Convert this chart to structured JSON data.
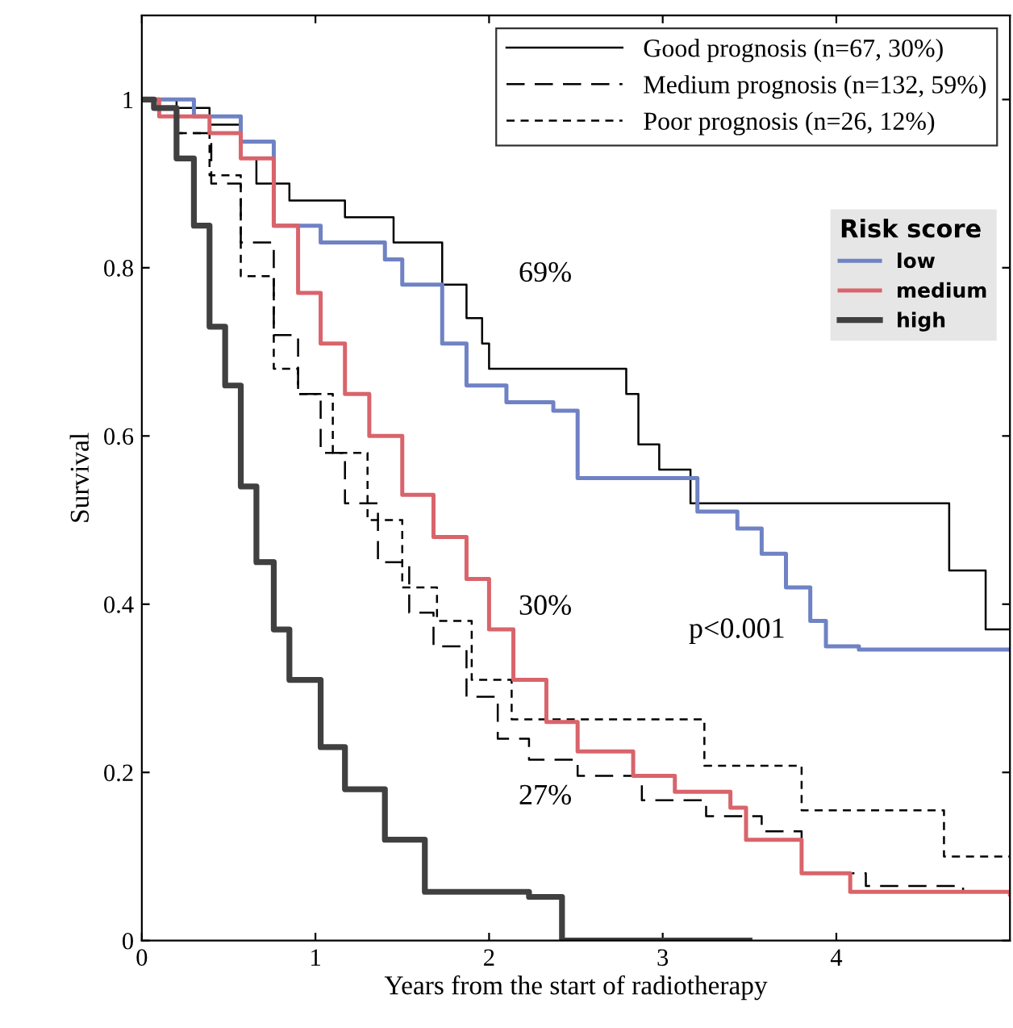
{
  "chart_data": {
    "type": "step",
    "xlabel": "Years from the start of radiotherapy",
    "ylabel": "Survival",
    "xlim": [
      0,
      5
    ],
    "xticks": [
      0,
      1,
      2,
      3,
      4
    ],
    "ylim": [
      0,
      1.1
    ],
    "yticks": [
      0,
      0.2,
      0.4,
      0.6,
      0.8,
      1
    ],
    "grid": false,
    "legend": "top right",
    "legend_title": "Risk score",
    "series": [
      {
        "name": "Good prognosis (n=67, 30%)",
        "color": "#000000",
        "line_style": "solid",
        "x": [
          0,
          0.1,
          0.39,
          0.57,
          0.66,
          0.85,
          1.17,
          1.45,
          1.73,
          1.87,
          1.96,
          2.0,
          2.79,
          2.86,
          2.98,
          3.16,
          4.65,
          4.86,
          5
        ],
        "values": [
          1,
          0.99,
          0.97,
          0.93,
          0.9,
          0.88,
          0.86,
          0.83,
          0.78,
          0.74,
          0.71,
          0.68,
          0.65,
          0.59,
          0.56,
          0.52,
          0.44,
          0.37,
          0.37
        ]
      },
      {
        "name": "Medium prognosis (n=132, 59%)",
        "color": "#000000",
        "line_style": "dashed",
        "x": [
          0,
          0.2,
          0.4,
          0.57,
          0.76,
          0.9,
          1.03,
          1.17,
          1.36,
          1.54,
          1.68,
          1.87,
          2.05,
          2.23,
          2.51,
          2.88,
          3.25,
          3.57,
          3.8,
          4.17,
          4.73
        ],
        "values": [
          1,
          0.96,
          0.9,
          0.83,
          0.72,
          0.65,
          0.58,
          0.52,
          0.45,
          0.39,
          0.35,
          0.29,
          0.24,
          0.215,
          0.196,
          0.167,
          0.148,
          0.13,
          0.08,
          0.065,
          0.058
        ]
      },
      {
        "name": "Poor prognosis (n=26, 12%)",
        "color": "#000000",
        "line_style": "dotted",
        "x": [
          0,
          0.2,
          0.39,
          0.57,
          0.76,
          0.9,
          1.1,
          1.3,
          1.5,
          1.7,
          1.9,
          2.13,
          3.24,
          3.8,
          4.62,
          5
        ],
        "values": [
          1,
          0.96,
          0.91,
          0.79,
          0.68,
          0.65,
          0.58,
          0.5,
          0.42,
          0.38,
          0.31,
          0.263,
          0.208,
          0.155,
          0.1,
          0.1
        ]
      },
      {
        "name": "low",
        "color": "#6f82c4",
        "line_style": "solid",
        "x": [
          0,
          0.3,
          0.57,
          0.76,
          1.03,
          1.4,
          1.5,
          1.73,
          1.87,
          2.1,
          2.37,
          2.51,
          3.2,
          3.43,
          3.57,
          3.71,
          3.85,
          3.94,
          4.13,
          5
        ],
        "values": [
          1,
          0.98,
          0.95,
          0.85,
          0.83,
          0.81,
          0.78,
          0.71,
          0.66,
          0.64,
          0.63,
          0.55,
          0.51,
          0.49,
          0.46,
          0.42,
          0.38,
          0.35,
          0.346,
          0.346
        ]
      },
      {
        "name": "medium",
        "color": "#d9646b",
        "line_style": "solid",
        "x": [
          0,
          0.1,
          0.39,
          0.57,
          0.76,
          0.9,
          1.03,
          1.17,
          1.31,
          1.5,
          1.68,
          1.87,
          2.0,
          2.14,
          2.33,
          2.51,
          2.83,
          3.07,
          3.39,
          3.48,
          3.8,
          4.08,
          5
        ],
        "values": [
          1,
          0.98,
          0.96,
          0.93,
          0.85,
          0.77,
          0.71,
          0.65,
          0.6,
          0.53,
          0.48,
          0.43,
          0.37,
          0.31,
          0.26,
          0.225,
          0.196,
          0.177,
          0.158,
          0.12,
          0.08,
          0.058,
          0.055
        ]
      },
      {
        "name": "high",
        "color": "#404040",
        "line_style": "solid",
        "x": [
          0,
          0.07,
          0.2,
          0.3,
          0.39,
          0.48,
          0.57,
          0.66,
          0.76,
          0.85,
          1.03,
          1.17,
          1.4,
          1.63,
          2.23,
          2.42,
          3.5
        ],
        "values": [
          1,
          0.99,
          0.93,
          0.85,
          0.73,
          0.66,
          0.54,
          0.45,
          0.37,
          0.31,
          0.23,
          0.18,
          0.12,
          0.058,
          0.052,
          0,
          0
        ]
      }
    ],
    "annotations": [
      "69%",
      "30%",
      "27%",
      "p<0.001"
    ]
  }
}
